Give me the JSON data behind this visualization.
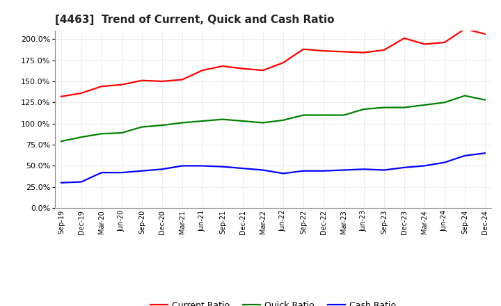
{
  "title": "[4463]  Trend of Current, Quick and Cash Ratio",
  "x_labels": [
    "Sep-19",
    "Dec-19",
    "Mar-20",
    "Jun-20",
    "Sep-20",
    "Dec-20",
    "Mar-21",
    "Jun-21",
    "Sep-21",
    "Dec-21",
    "Mar-22",
    "Jun-22",
    "Sep-22",
    "Dec-22",
    "Mar-23",
    "Jun-23",
    "Sep-23",
    "Dec-23",
    "Mar-24",
    "Jun-24",
    "Sep-24",
    "Dec-24"
  ],
  "current_ratio": [
    1.32,
    1.36,
    1.44,
    1.46,
    1.51,
    1.5,
    1.52,
    1.63,
    1.68,
    1.65,
    1.63,
    1.72,
    1.88,
    1.86,
    1.85,
    1.84,
    1.87,
    2.01,
    1.94,
    1.96,
    2.12,
    2.06
  ],
  "quick_ratio": [
    0.79,
    0.84,
    0.88,
    0.89,
    0.96,
    0.98,
    1.01,
    1.03,
    1.05,
    1.03,
    1.01,
    1.04,
    1.1,
    1.1,
    1.1,
    1.17,
    1.19,
    1.19,
    1.22,
    1.25,
    1.33,
    1.28
  ],
  "cash_ratio": [
    0.3,
    0.31,
    0.42,
    0.42,
    0.44,
    0.46,
    0.5,
    0.5,
    0.49,
    0.47,
    0.45,
    0.41,
    0.44,
    0.44,
    0.45,
    0.46,
    0.45,
    0.48,
    0.5,
    0.54,
    0.62,
    0.65
  ],
  "current_color": "#ff0000",
  "quick_color": "#008000",
  "cash_color": "#0000ff",
  "ylim": [
    0.0,
    2.1
  ],
  "yticks": [
    0.0,
    0.25,
    0.5,
    0.75,
    1.0,
    1.25,
    1.5,
    1.75,
    2.0
  ],
  "bg_color": "#ffffff",
  "grid_color": "#bbbbbb",
  "legend_labels": [
    "Current Ratio",
    "Quick Ratio",
    "Cash Ratio"
  ]
}
